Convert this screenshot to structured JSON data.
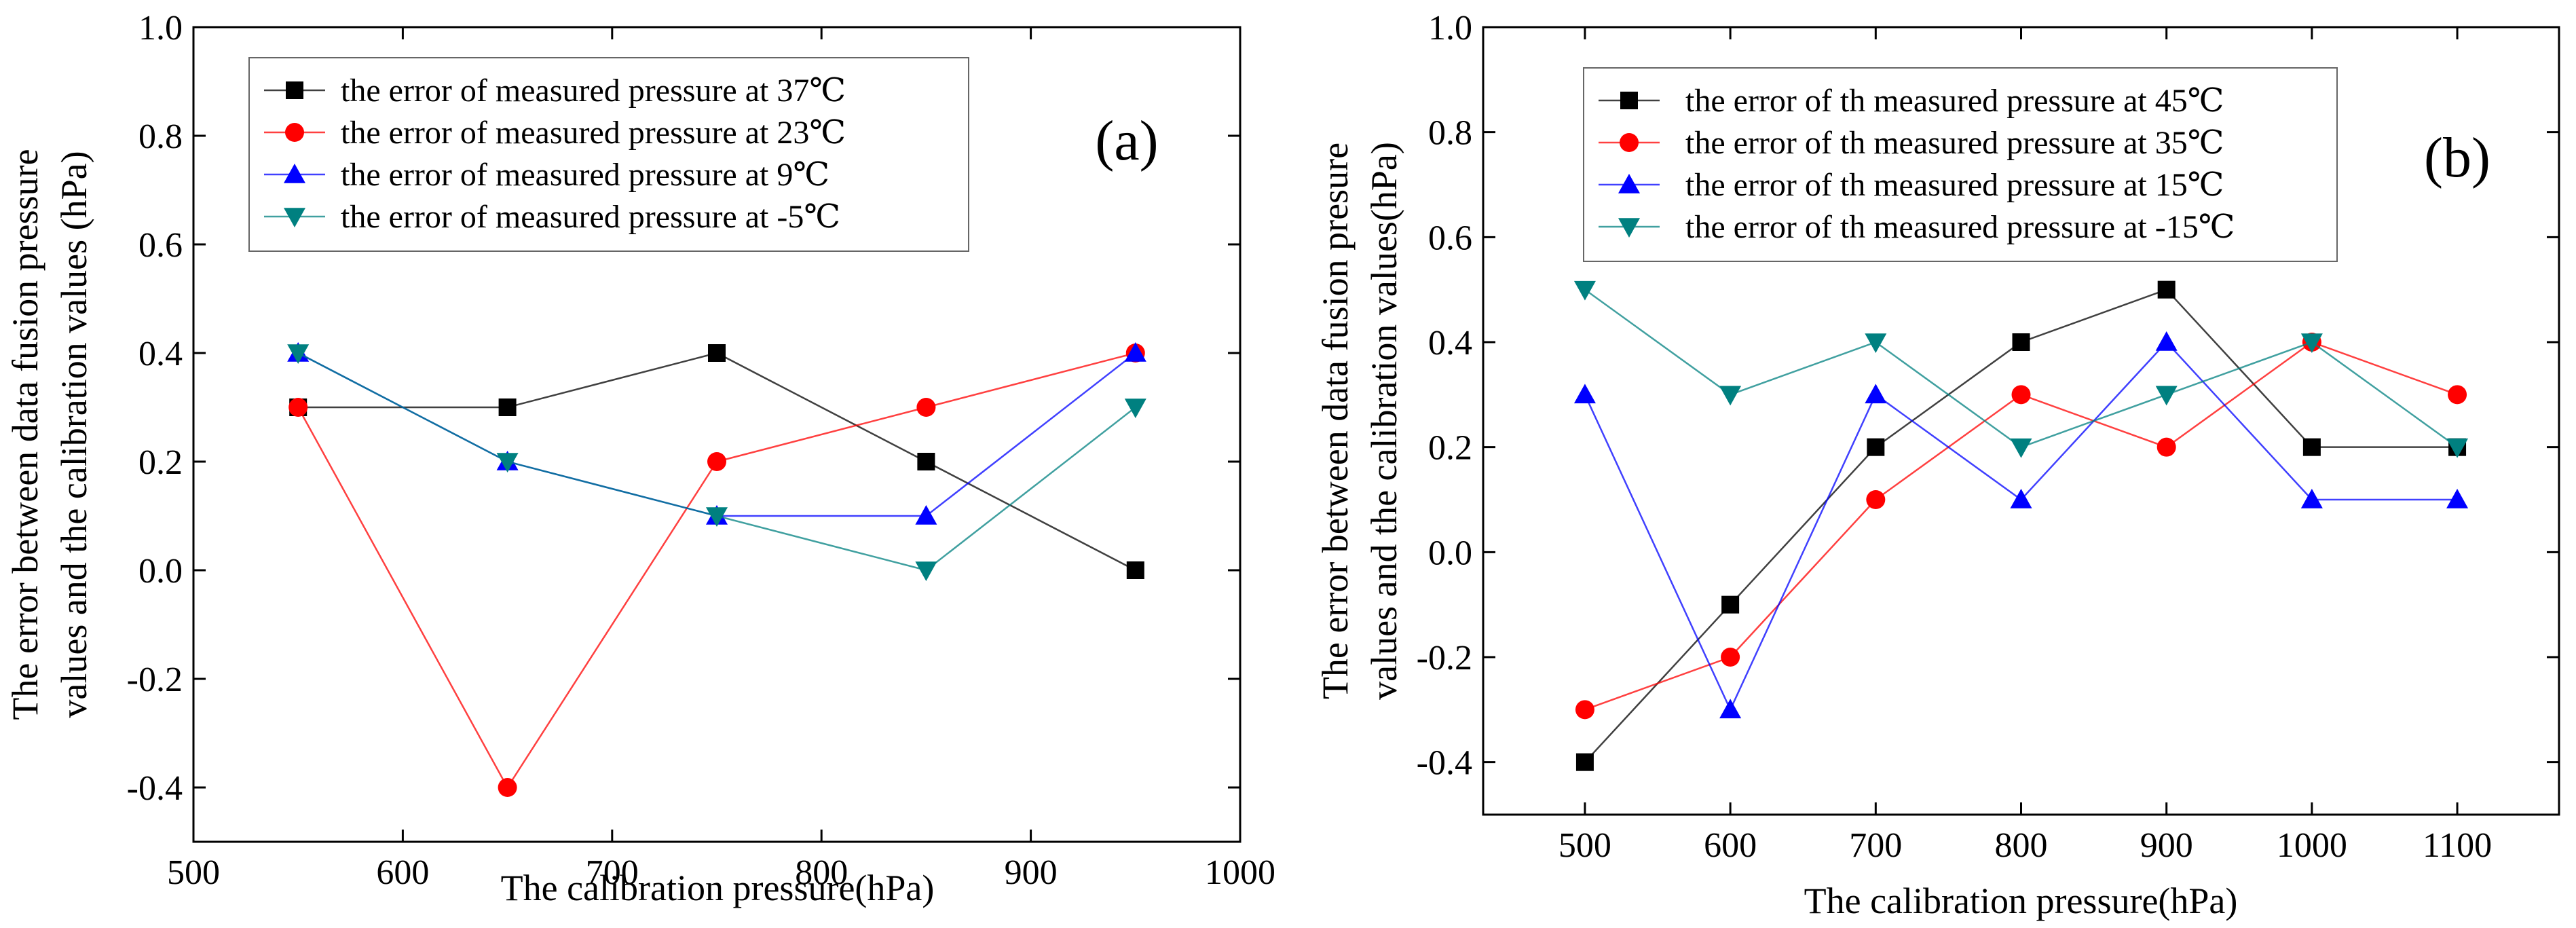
{
  "chart_data": [
    {
      "type": "line",
      "panel_label": "(a)",
      "xlabel": "The calibration pressure(hPa)",
      "ylabel_lines": [
        "The error between data fusion pressure",
        "values and the calibration values (hPa)"
      ],
      "xlim": [
        500,
        1000
      ],
      "ylim": [
        -0.5,
        1.0
      ],
      "xticks": [
        500,
        600,
        700,
        800,
        900,
        1000
      ],
      "xtick_labels": [
        "500",
        "600",
        "700",
        "800",
        "900",
        "1000"
      ],
      "yticks": [
        -0.4,
        -0.2,
        0.0,
        0.2,
        0.4,
        0.6,
        0.8,
        1.0
      ],
      "ytick_labels": [
        "-0.4",
        "-0.2",
        "0.0",
        "0.2",
        "0.4",
        "0.6",
        "0.8",
        "1.0"
      ],
      "series": [
        {
          "name": "the error of measured pressure at 37℃",
          "color": "#000000",
          "marker": "square",
          "x": [
            550,
            650,
            750,
            850,
            950
          ],
          "y": [
            0.3,
            0.3,
            0.4,
            0.2,
            0.0
          ]
        },
        {
          "name": "the error of measured pressure at 23℃",
          "color": "#ff0000",
          "marker": "circle",
          "x": [
            550,
            650,
            750,
            850,
            950
          ],
          "y": [
            0.3,
            -0.4,
            0.2,
            0.3,
            0.4
          ]
        },
        {
          "name": "the error of measured pressure at 9℃",
          "color": "#0000ff",
          "marker": "triangle-up",
          "x": [
            550,
            650,
            750,
            850,
            950
          ],
          "y": [
            0.4,
            0.2,
            0.1,
            0.1,
            0.4
          ]
        },
        {
          "name": "the error of measured pressure at -5℃",
          "color": "#008080",
          "marker": "triangle-down",
          "x": [
            550,
            650,
            750,
            850,
            950
          ],
          "y": [
            0.4,
            0.2,
            0.1,
            0.0,
            0.3
          ]
        }
      ]
    },
    {
      "type": "line",
      "panel_label": "(b)",
      "xlabel": "The calibration pressure(hPa)",
      "ylabel_lines": [
        "The error between data fusion presure",
        "values and the calibration values(hPa)"
      ],
      "xlim": [
        430,
        1170
      ],
      "ylim": [
        -0.5,
        1.0
      ],
      "xticks": [
        500,
        600,
        700,
        800,
        900,
        1000,
        1100
      ],
      "xtick_labels": [
        "500",
        "600",
        "700",
        "800",
        "900",
        "1000",
        "1100"
      ],
      "yticks": [
        -0.4,
        -0.2,
        0.0,
        0.2,
        0.4,
        0.6,
        0.8,
        1.0
      ],
      "ytick_labels": [
        "-0.4",
        "-0.2",
        "0.0",
        "0.2",
        "0.4",
        "0.6",
        "0.8",
        "1.0"
      ],
      "series": [
        {
          "name": "the error of th measured pressure at 45℃",
          "color": "#000000",
          "marker": "square",
          "x": [
            500,
            600,
            700,
            800,
            900,
            1000,
            1100
          ],
          "y": [
            -0.4,
            -0.1,
            0.2,
            0.4,
            0.5,
            0.2,
            0.2
          ]
        },
        {
          "name": "the error of th measured pressure at 35℃",
          "color": "#ff0000",
          "marker": "circle",
          "x": [
            500,
            600,
            700,
            800,
            900,
            1000,
            1100
          ],
          "y": [
            -0.3,
            -0.2,
            0.1,
            0.3,
            0.2,
            0.4,
            0.3
          ]
        },
        {
          "name": "the error of th measured pressure at 15℃",
          "color": "#0000ff",
          "marker": "triangle-up",
          "x": [
            500,
            600,
            700,
            800,
            900,
            1000,
            1100
          ],
          "y": [
            0.3,
            -0.3,
            0.3,
            0.1,
            0.4,
            0.1,
            0.1
          ]
        },
        {
          "name": "the error of th measured pressure at -15℃",
          "color": "#008080",
          "marker": "triangle-down",
          "x": [
            500,
            600,
            700,
            800,
            900,
            1000,
            1100
          ],
          "y": [
            0.5,
            0.3,
            0.4,
            0.2,
            0.3,
            0.4,
            0.2
          ]
        }
      ]
    }
  ]
}
